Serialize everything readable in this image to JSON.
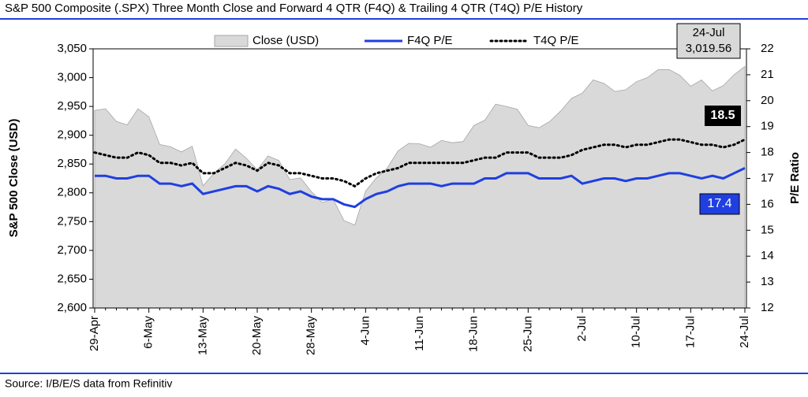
{
  "chart_data": {
    "type": "line",
    "title": "S&P 500 Composite (.SPX) Three Month Close and Forward 4 QTR (F4Q) & Trailing 4 QTR (T4Q) P/E History",
    "source": "Source: I/B/E/S data from Refinitiv",
    "ylabel": "S&P 500 Close (USD)",
    "y2label": "P/E Ratio",
    "categories": [
      "29-Apr",
      null,
      null,
      null,
      null,
      "6-May",
      null,
      null,
      null,
      null,
      "13-May",
      null,
      null,
      null,
      null,
      "20-May",
      null,
      null,
      null,
      null,
      "28-May",
      null,
      null,
      null,
      null,
      "4-Jun",
      null,
      null,
      null,
      null,
      "11-Jun",
      null,
      null,
      null,
      null,
      "18-Jun",
      null,
      null,
      null,
      null,
      "25-Jun",
      null,
      null,
      null,
      null,
      "2-Jul",
      null,
      null,
      null,
      null,
      "10-Jul",
      null,
      null,
      null,
      null,
      "17-Jul",
      null,
      null,
      null,
      null,
      "24-Jul"
    ],
    "series": [
      {
        "name": "Close (USD)",
        "color": "#d9d9d9",
        "axis": "y",
        "values": [
          2943,
          2946,
          2924,
          2918,
          2946,
          2932,
          2884,
          2880,
          2871,
          2881,
          2812,
          2834,
          2850,
          2876,
          2860,
          2840,
          2864,
          2856,
          2823,
          2826,
          2802,
          2783,
          2789,
          2752,
          2744,
          2803,
          2826,
          2843,
          2873,
          2886,
          2885,
          2879,
          2891,
          2887,
          2889,
          2917,
          2926,
          2954,
          2950,
          2945,
          2917,
          2913,
          2924,
          2942,
          2964,
          2973,
          2996,
          2990,
          2976,
          2979,
          2993,
          3000,
          3014,
          3014,
          3004,
          2985,
          2996,
          2977,
          2986,
          3005,
          3019.56
        ]
      },
      {
        "name": "F4Q P/E",
        "color": "#1f3fe0",
        "axis": "y2",
        "values": [
          17.1,
          17.1,
          17.0,
          17.0,
          17.1,
          17.1,
          16.8,
          16.8,
          16.7,
          16.8,
          16.4,
          16.5,
          16.6,
          16.7,
          16.7,
          16.5,
          16.7,
          16.6,
          16.4,
          16.5,
          16.3,
          16.2,
          16.2,
          16.0,
          15.9,
          16.2,
          16.4,
          16.5,
          16.7,
          16.8,
          16.8,
          16.8,
          16.7,
          16.8,
          16.8,
          16.8,
          17.0,
          17.0,
          17.2,
          17.2,
          17.2,
          17.0,
          17.0,
          17.0,
          17.1,
          16.8,
          16.9,
          17.0,
          17.0,
          16.9,
          17.0,
          17.0,
          17.1,
          17.2,
          17.2,
          17.1,
          17.0,
          17.1,
          17.0,
          17.2,
          17.4
        ]
      },
      {
        "name": "T4Q P/E",
        "color": "#000000",
        "axis": "y2",
        "dotted": true,
        "values": [
          18.0,
          17.9,
          17.8,
          17.8,
          18.0,
          17.9,
          17.6,
          17.6,
          17.5,
          17.6,
          17.2,
          17.2,
          17.4,
          17.6,
          17.5,
          17.3,
          17.6,
          17.5,
          17.2,
          17.2,
          17.1,
          17.0,
          17.0,
          16.9,
          16.7,
          17.0,
          17.2,
          17.3,
          17.4,
          17.6,
          17.6,
          17.6,
          17.6,
          17.6,
          17.6,
          17.7,
          17.8,
          17.8,
          18.0,
          18.0,
          18.0,
          17.8,
          17.8,
          17.8,
          17.9,
          18.1,
          18.2,
          18.3,
          18.3,
          18.2,
          18.3,
          18.3,
          18.4,
          18.5,
          18.5,
          18.4,
          18.3,
          18.3,
          18.2,
          18.3,
          18.5
        ]
      }
    ],
    "ylim": [
      2600,
      3050
    ],
    "yticks": [
      {
        "value": 2600,
        "label": "2,600"
      },
      {
        "value": 2650,
        "label": "2,650"
      },
      {
        "value": 2700,
        "label": "2,700"
      },
      {
        "value": 2750,
        "label": "2,750"
      },
      {
        "value": 2800,
        "label": "2,800"
      },
      {
        "value": 2850,
        "label": "2,850"
      },
      {
        "value": 2900,
        "label": "2,900"
      },
      {
        "value": 2950,
        "label": "2,950"
      },
      {
        "value": 3000,
        "label": "3,000"
      },
      {
        "value": 3050,
        "label": "3,050"
      }
    ],
    "y2lim": [
      12,
      22
    ],
    "y2ticks": [
      12,
      13,
      14,
      15,
      16,
      17,
      18,
      19,
      20,
      21,
      22
    ],
    "annotations": {
      "date": "24-Jul",
      "close": "3,019.56",
      "t4q": "18.5",
      "f4q": "17.4"
    }
  }
}
